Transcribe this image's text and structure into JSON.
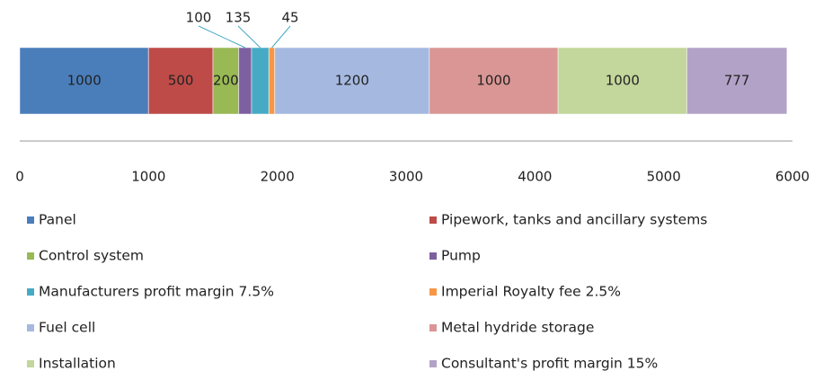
{
  "chart_data": {
    "type": "stacked-bar-horizontal",
    "series": [
      {
        "name": "Panel",
        "color": "#4a7ebb",
        "values": [
          1000
        ]
      },
      {
        "name": "Pipework, tanks and ancillary systems",
        "color": "#be4b48",
        "values": [
          500
        ]
      },
      {
        "name": "Control system",
        "color": "#98b954",
        "values": [
          200
        ]
      },
      {
        "name": "Pump",
        "color": "#7d60a0",
        "values": [
          100
        ]
      },
      {
        "name": "Manufacturers profit margin 7.5%",
        "color": "#46aac5",
        "values": [
          135
        ]
      },
      {
        "name": "Imperial Royalty fee 2.5%",
        "color": "#f79646",
        "values": [
          45
        ]
      },
      {
        "name": "Fuel cell",
        "color": "#a5b8e0",
        "values": [
          1200
        ]
      },
      {
        "name": "Metal hydride storage",
        "color": "#d99694",
        "values": [
          1000
        ]
      },
      {
        "name": "Installation",
        "color": "#c3d69b",
        "values": [
          1000
        ]
      },
      {
        "name": "Consultant's profit margin 15%",
        "color": "#b3a2c7",
        "values": [
          777
        ]
      }
    ],
    "xlim": [
      0,
      6000
    ],
    "xticks": [
      0,
      1000,
      2000,
      3000,
      4000,
      5000,
      6000
    ],
    "grid": false,
    "legend": "bottom"
  }
}
